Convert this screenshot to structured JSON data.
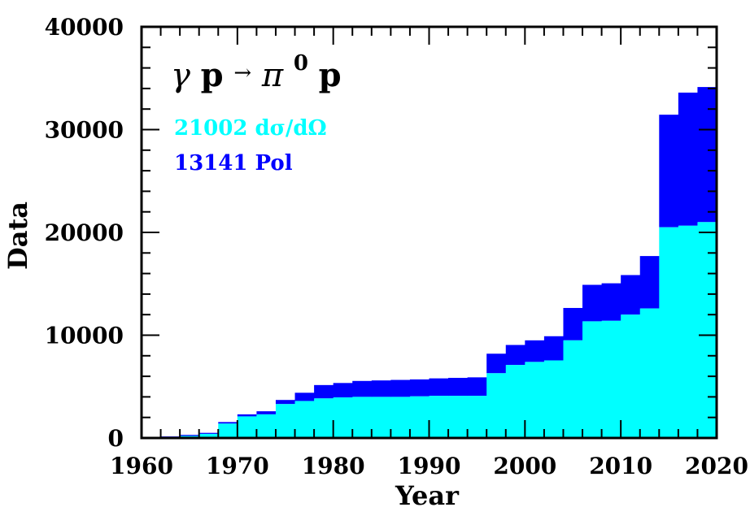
{
  "chart_data": {
    "type": "area",
    "xlabel": "Year",
    "ylabel": "Data",
    "xlim": [
      1960,
      2020
    ],
    "ylim": [
      0,
      40000
    ],
    "x_ticks": [
      "1960",
      "1970",
      "1980",
      "1990",
      "2000",
      "2010",
      "2020"
    ],
    "y_ticks": [
      "0",
      "10000",
      "20000",
      "30000",
      "40000"
    ],
    "reaction": {
      "gamma": "γ",
      "p1": "p",
      "arrow": "→",
      "pi": "π",
      "sup": "0",
      "p2": "p"
    },
    "series": [
      {
        "name": "dσ/dΩ",
        "count": "21002",
        "label": "21002  dσ/dΩ",
        "color": "#00ffff",
        "step_x": [
          1962,
          1964,
          1966,
          1968,
          1970,
          1972,
          1974,
          1976,
          1978,
          1980,
          1982,
          1984,
          1986,
          1988,
          1990,
          1992,
          1994,
          1996,
          1998,
          2000,
          2002,
          2004,
          2006,
          2008,
          2010,
          2012,
          2014,
          2016,
          2018
        ],
        "values": [
          100,
          200,
          400,
          1400,
          2100,
          2300,
          3300,
          3600,
          3850,
          3950,
          4000,
          4000,
          4000,
          4050,
          4100,
          4100,
          4100,
          6300,
          7100,
          7400,
          7550,
          9500,
          11350,
          11400,
          12000,
          12600,
          20500,
          20650,
          21002
        ]
      },
      {
        "name": "Pol",
        "count": "13141",
        "label": "13141  Pol",
        "color": "#0000ff",
        "step_x": [
          1962,
          1964,
          1966,
          1968,
          1970,
          1972,
          1974,
          1976,
          1978,
          1980,
          1982,
          1984,
          1986,
          1988,
          1990,
          1992,
          1994,
          1996,
          1998,
          2000,
          2002,
          2004,
          2006,
          2008,
          2010,
          2012,
          2014,
          2016,
          2018
        ],
        "values": [
          50,
          100,
          100,
          150,
          200,
          300,
          400,
          800,
          1300,
          1400,
          1550,
          1600,
          1650,
          1650,
          1700,
          1750,
          1800,
          1900,
          1950,
          2100,
          2350,
          3150,
          3550,
          3650,
          3850,
          5100,
          10950,
          12950,
          13141
        ]
      }
    ]
  }
}
